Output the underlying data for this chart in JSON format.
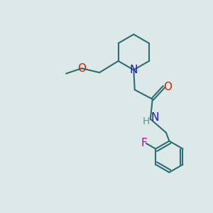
{
  "bg_color": "#dde8e8",
  "bond_color": "#2d6e6e",
  "N_color": "#1a1acc",
  "O_color": "#cc2200",
  "F_color": "#cc00aa",
  "H_color": "#559999",
  "font_size": 10,
  "fig_size": [
    3.0,
    3.0
  ],
  "dpi": 100,
  "xlim": [
    0,
    10
  ],
  "ylim": [
    0,
    10
  ]
}
